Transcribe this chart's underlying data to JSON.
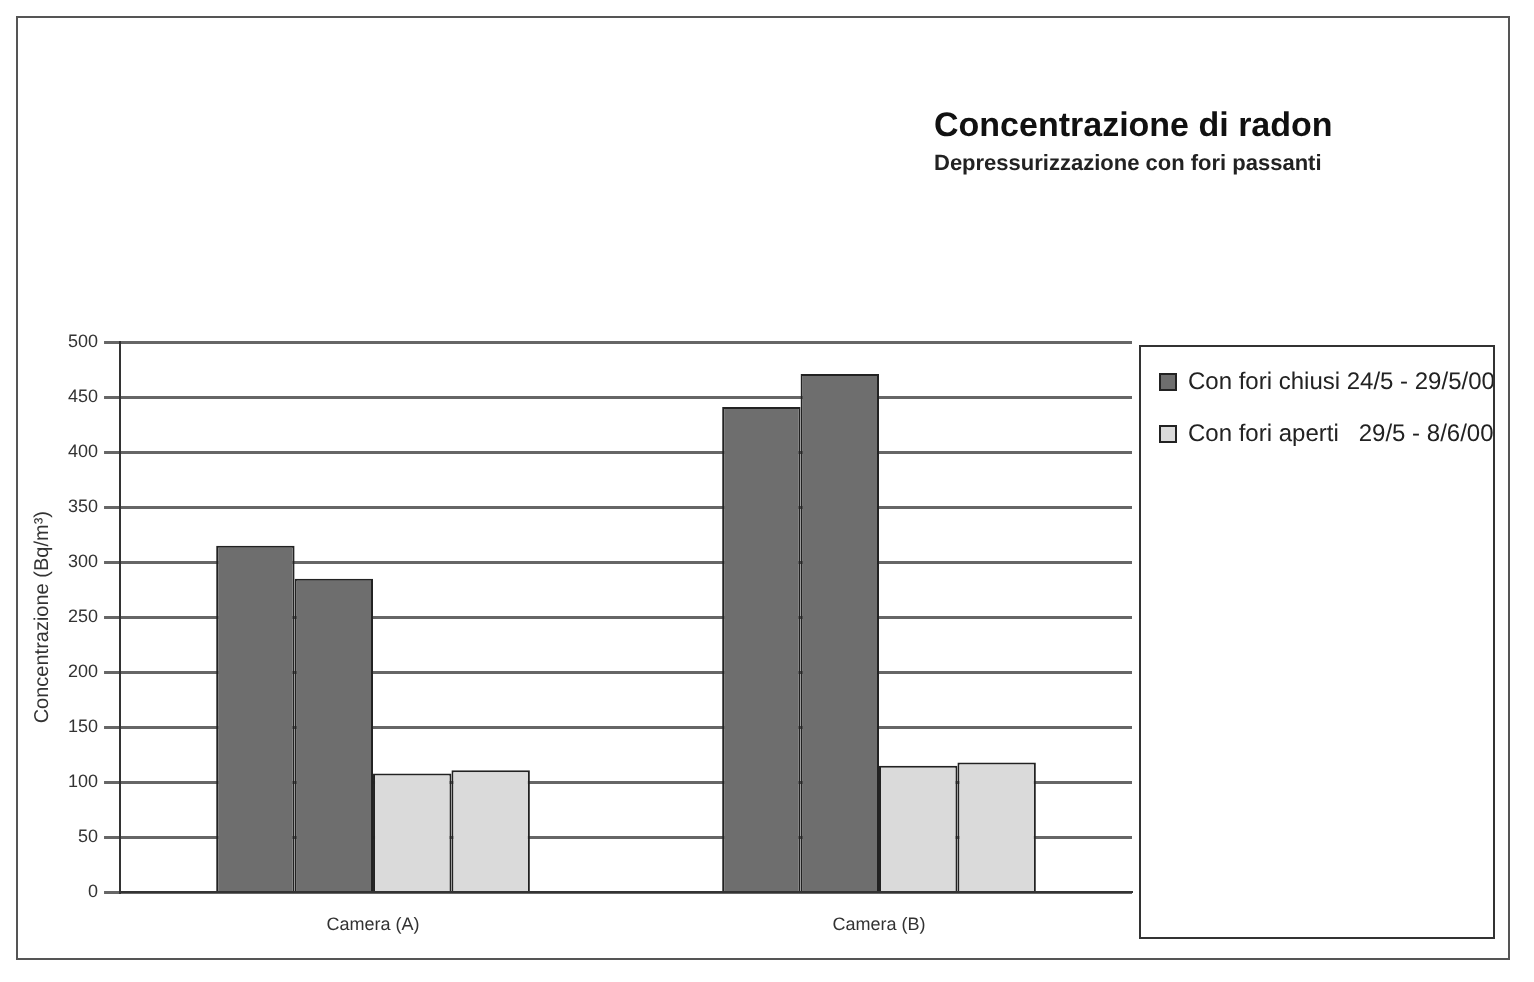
{
  "chart_data": {
    "type": "bar",
    "title": "Concentrazione di radon",
    "subtitle": "Depressurizzazione con fori passanti",
    "ylabel": "Concentrazione (Bq/m³)",
    "categories": [
      "Camera (A)",
      "Camera (B)"
    ],
    "series": [
      {
        "name": "Con fori chiusi 24/5 - 29/5/00",
        "color": "#6e6e6e",
        "values": [
          315,
          441
        ]
      },
      {
        "color": "#6e6e6e",
        "values": [
          285,
          471
        ]
      },
      {
        "name": "Con fori aperti   29/5 - 8/6/00",
        "color": "#dadada",
        "values": [
          108,
          115
        ]
      },
      {
        "color": "#dadada",
        "values": [
          111,
          118
        ]
      }
    ],
    "ylim": [
      0,
      500
    ],
    "yticks": [
      0,
      50,
      100,
      150,
      200,
      250,
      300,
      350,
      400,
      450,
      500
    ],
    "grid": "y",
    "legend": "right"
  }
}
